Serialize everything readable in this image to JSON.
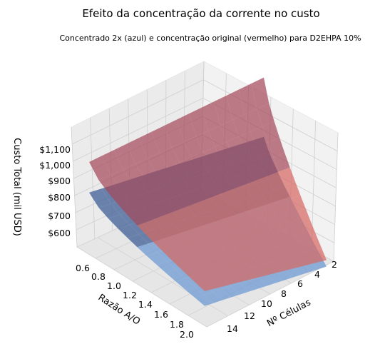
{
  "chart_data": {
    "type": "surface3d",
    "title": "Efeito da concentração da corrente no custo",
    "subtitle": "Concentrado 2x (azul) e concentração original (vermelho) para D2EHPA 10%",
    "xlabel": "Nº Células",
    "ylabel": "Razão A/O",
    "zlabel": "Custo Total (mil USD)",
    "x_ticks": [
      2,
      4,
      6,
      8,
      10,
      12,
      14
    ],
    "y_ticks": [
      "0.6",
      "0.8",
      "1.0",
      "1.2",
      "1.4",
      "1.6",
      "1.8",
      "2.0"
    ],
    "z_ticks": [
      "$600",
      "$700",
      "$800",
      "$900",
      "$1,000",
      "$1,100"
    ],
    "x_range": [
      1,
      15
    ],
    "y_range": [
      0.5,
      2.0
    ],
    "z_range": [
      560,
      1170
    ],
    "grid": true,
    "series": [
      {
        "color": "#5b8ec9",
        "description_key": "azul",
        "corners": {
          "n2_ao0.5": 800,
          "n2_ao2.0": 585,
          "n15_ao0.5": 915,
          "n15_ao2.0": 650
        }
      },
      {
        "color": "#d9534f",
        "description_key": "vermelho",
        "corners": {
          "n2_ao0.5": 1120,
          "n2_ao2.0": 620,
          "n15_ao0.5": 1080,
          "n15_ao2.0": 730
        }
      }
    ]
  }
}
